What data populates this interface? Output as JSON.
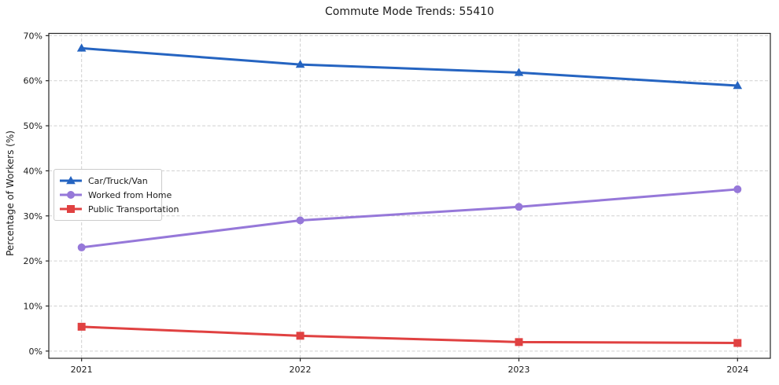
{
  "chart_data": {
    "type": "line",
    "title": "Commute Mode Trends: 55410",
    "xlabel": "",
    "ylabel": "Percentage of Workers (%)",
    "x": [
      2021,
      2022,
      2023,
      2024
    ],
    "x_tick_labels": [
      "2021",
      "2022",
      "2023",
      "2024"
    ],
    "y_ticks": [
      0,
      10,
      20,
      30,
      40,
      50,
      60,
      70
    ],
    "y_tick_labels": [
      "0%",
      "10%",
      "20%",
      "30%",
      "40%",
      "50%",
      "60%",
      "70%"
    ],
    "xlim": [
      2020.85,
      2024.15
    ],
    "ylim": [
      -1.6,
      70.5
    ],
    "grid": true,
    "grid_style": "dashed",
    "legend_position": "center-left",
    "series": [
      {
        "name": "Car/Truck/Van",
        "marker": "triangle",
        "color": "#2564c1",
        "values": [
          67.2,
          63.6,
          61.8,
          58.9
        ]
      },
      {
        "name": "Worked from Home",
        "marker": "circle",
        "color": "#9678d9",
        "values": [
          23.0,
          29.0,
          32.0,
          35.9
        ]
      },
      {
        "name": "Public Transportation",
        "marker": "square",
        "color": "#e04141",
        "values": [
          5.4,
          3.4,
          2.0,
          1.8
        ]
      }
    ],
    "colors": {
      "spine": "#262626",
      "grid": "#d0d0d0",
      "tick_text": "#1a1a1a",
      "background": "#ffffff"
    }
  }
}
